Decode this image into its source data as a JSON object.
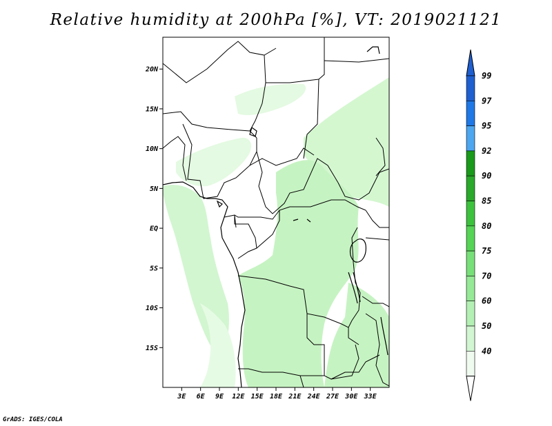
{
  "title": "Relative humidity at 200hPa [%], VT: 2019021121",
  "credit": "GrADS: IGES/COLA",
  "map": {
    "lon_range": [
      0,
      36
    ],
    "lat_range": [
      -20,
      24
    ],
    "lat_ticks": [
      {
        "value": 20,
        "label": "20N"
      },
      {
        "value": 15,
        "label": "15N"
      },
      {
        "value": 10,
        "label": "10N"
      },
      {
        "value": 5,
        "label": "5N"
      },
      {
        "value": 0,
        "label": "EQ"
      },
      {
        "value": -5,
        "label": "5S"
      },
      {
        "value": -10,
        "label": "10S"
      },
      {
        "value": -15,
        "label": "15S"
      }
    ],
    "lon_ticks": [
      {
        "value": 3,
        "label": "3E"
      },
      {
        "value": 6,
        "label": "6E"
      },
      {
        "value": 9,
        "label": "9E"
      },
      {
        "value": 12,
        "label": "12E"
      },
      {
        "value": 15,
        "label": "15E"
      },
      {
        "value": 18,
        "label": "18E"
      },
      {
        "value": 21,
        "label": "21E"
      },
      {
        "value": 24,
        "label": "24E"
      },
      {
        "value": 27,
        "label": "27E"
      },
      {
        "value": 30,
        "label": "30E"
      },
      {
        "value": 33,
        "label": "33E"
      }
    ]
  },
  "colorbar": {
    "levels": [
      "99",
      "97",
      "95",
      "92",
      "90",
      "85",
      "80",
      "75",
      "70",
      "60",
      "50",
      "40"
    ],
    "colors": [
      "#1f5fd0",
      "#1f78e6",
      "#4ea6f0",
      "#1a9a1a",
      "#2aa92a",
      "#3dc23d",
      "#55d455",
      "#78e078",
      "#96e996",
      "#b4f0b4",
      "#d2f6d2",
      "#f0fbf0"
    ]
  }
}
